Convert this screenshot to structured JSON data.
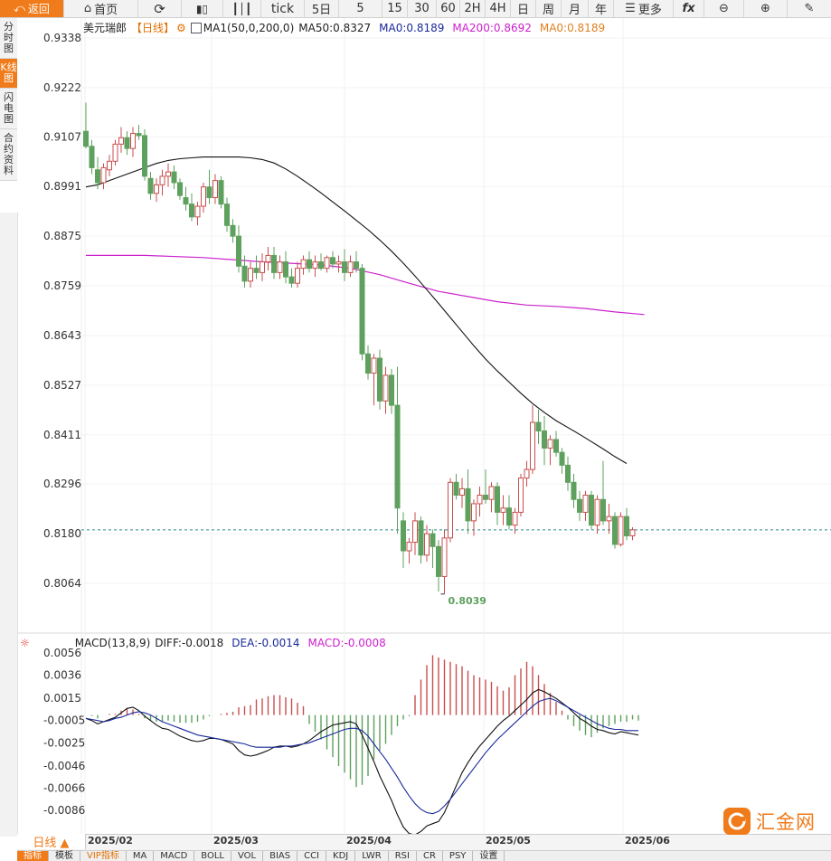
{
  "toolbar": {
    "back": "返回",
    "home": "首页",
    "tick": "tick",
    "periods": [
      "5日",
      "5",
      "15",
      "30",
      "60",
      "2H",
      "4H",
      "日",
      "周",
      "月",
      "年"
    ],
    "more": "更多",
    "fx": "fx"
  },
  "side_tabs": [
    "分时图",
    "K线图",
    "闪电图",
    "合约资料"
  ],
  "price_legend": {
    "symbol": "美元瑞郎",
    "period": "【日线】",
    "ma_settings": "MA1(50,0,200,0)",
    "ma50": "MA50:0.8327",
    "ma0": "MA0:0.8189",
    "ma200": "MA200:0.8692",
    "ma0b": "MA0:0.8189"
  },
  "macd_legend": {
    "title": "MACD(13,8,9)",
    "diff": "DIFF:-0.0018",
    "dea": "DEA:-0.0014",
    "macd": "MACD:-0.0008"
  },
  "colors": {
    "up": "#c94e4e",
    "down": "#5ea05e",
    "ma50": "#111111",
    "ma200": "#cc22cc",
    "dea": "#1a2a9a",
    "accent": "#f07b1a",
    "last_price_line": "#2a8a8a"
  },
  "date_bar": {
    "period_button": "日线 ▲",
    "dates": [
      "2025/02",
      "2025/03",
      "2025/04",
      "2025/05",
      "2025/06"
    ]
  },
  "indicator_tabs": [
    "指标",
    "模板",
    "VIP指标",
    "MA",
    "MACD",
    "BOLL",
    "VOL",
    "BIAS",
    "CCI",
    "KDJ",
    "LWR",
    "RSI",
    "CR",
    "PSY",
    "设置"
  ],
  "watermark": "汇金网",
  "chart_data": [
    {
      "type": "candlestick",
      "yticks": [
        0.9338,
        0.9222,
        0.9107,
        0.8991,
        0.8875,
        0.8759,
        0.8643,
        0.8527,
        0.8411,
        0.8296,
        0.818,
        0.8064
      ],
      "ylim": [
        0.799,
        0.94
      ],
      "annotations": [
        {
          "text": "0.8039",
          "value": 0.8039
        }
      ],
      "last_price": 0.8189,
      "candles": [
        {
          "o": 0.912,
          "h": 0.9187,
          "l": 0.908,
          "c": 0.9085
        },
        {
          "o": 0.9085,
          "h": 0.91,
          "l": 0.902,
          "c": 0.9035
        },
        {
          "o": 0.903,
          "h": 0.906,
          "l": 0.8985,
          "c": 0.9
        },
        {
          "o": 0.9,
          "h": 0.9045,
          "l": 0.8985,
          "c": 0.9035
        },
        {
          "o": 0.903,
          "h": 0.9065,
          "l": 0.9015,
          "c": 0.905
        },
        {
          "o": 0.905,
          "h": 0.91,
          "l": 0.904,
          "c": 0.909
        },
        {
          "o": 0.909,
          "h": 0.913,
          "l": 0.907,
          "c": 0.9105
        },
        {
          "o": 0.9105,
          "h": 0.912,
          "l": 0.9065,
          "c": 0.908
        },
        {
          "o": 0.908,
          "h": 0.913,
          "l": 0.906,
          "c": 0.9115
        },
        {
          "o": 0.9115,
          "h": 0.9135,
          "l": 0.91,
          "c": 0.911
        },
        {
          "o": 0.911,
          "h": 0.9125,
          "l": 0.9005,
          "c": 0.9015
        },
        {
          "o": 0.901,
          "h": 0.9025,
          "l": 0.896,
          "c": 0.8975
        },
        {
          "o": 0.8975,
          "h": 0.901,
          "l": 0.8955,
          "c": 0.8995
        },
        {
          "o": 0.8995,
          "h": 0.903,
          "l": 0.897,
          "c": 0.9015
        },
        {
          "o": 0.9015,
          "h": 0.9045,
          "l": 0.899,
          "c": 0.9025
        },
        {
          "o": 0.9025,
          "h": 0.904,
          "l": 0.8985,
          "c": 0.9
        },
        {
          "o": 0.9,
          "h": 0.901,
          "l": 0.896,
          "c": 0.897
        },
        {
          "o": 0.8965,
          "h": 0.899,
          "l": 0.8935,
          "c": 0.895
        },
        {
          "o": 0.895,
          "h": 0.8975,
          "l": 0.891,
          "c": 0.892
        },
        {
          "o": 0.892,
          "h": 0.8955,
          "l": 0.89,
          "c": 0.8945
        },
        {
          "o": 0.8945,
          "h": 0.9,
          "l": 0.893,
          "c": 0.899
        },
        {
          "o": 0.899,
          "h": 0.903,
          "l": 0.895,
          "c": 0.8965
        },
        {
          "o": 0.8965,
          "h": 0.902,
          "l": 0.895,
          "c": 0.9005
        },
        {
          "o": 0.9005,
          "h": 0.9015,
          "l": 0.894,
          "c": 0.895
        },
        {
          "o": 0.895,
          "h": 0.8965,
          "l": 0.8885,
          "c": 0.89
        },
        {
          "o": 0.89,
          "h": 0.8915,
          "l": 0.886,
          "c": 0.8875
        },
        {
          "o": 0.8875,
          "h": 0.89,
          "l": 0.879,
          "c": 0.8805
        },
        {
          "o": 0.8805,
          "h": 0.883,
          "l": 0.8755,
          "c": 0.877
        },
        {
          "o": 0.877,
          "h": 0.8815,
          "l": 0.8755,
          "c": 0.88
        },
        {
          "o": 0.88,
          "h": 0.883,
          "l": 0.8775,
          "c": 0.879
        },
        {
          "o": 0.879,
          "h": 0.8835,
          "l": 0.877,
          "c": 0.8815
        },
        {
          "o": 0.8815,
          "h": 0.885,
          "l": 0.8795,
          "c": 0.883
        },
        {
          "o": 0.883,
          "h": 0.885,
          "l": 0.8775,
          "c": 0.879
        },
        {
          "o": 0.879,
          "h": 0.883,
          "l": 0.8775,
          "c": 0.8815
        },
        {
          "o": 0.8815,
          "h": 0.884,
          "l": 0.8765,
          "c": 0.878
        },
        {
          "o": 0.878,
          "h": 0.88,
          "l": 0.8755,
          "c": 0.8765
        },
        {
          "o": 0.8765,
          "h": 0.8815,
          "l": 0.8755,
          "c": 0.88
        },
        {
          "o": 0.88,
          "h": 0.883,
          "l": 0.8785,
          "c": 0.882
        },
        {
          "o": 0.882,
          "h": 0.884,
          "l": 0.879,
          "c": 0.88
        },
        {
          "o": 0.88,
          "h": 0.883,
          "l": 0.878,
          "c": 0.8815
        },
        {
          "o": 0.8815,
          "h": 0.8835,
          "l": 0.8795,
          "c": 0.88
        },
        {
          "o": 0.88,
          "h": 0.883,
          "l": 0.879,
          "c": 0.8825
        },
        {
          "o": 0.8825,
          "h": 0.884,
          "l": 0.88,
          "c": 0.881
        },
        {
          "o": 0.881,
          "h": 0.883,
          "l": 0.879,
          "c": 0.8815
        },
        {
          "o": 0.8815,
          "h": 0.8845,
          "l": 0.877,
          "c": 0.879
        },
        {
          "o": 0.879,
          "h": 0.883,
          "l": 0.878,
          "c": 0.8815
        },
        {
          "o": 0.8815,
          "h": 0.884,
          "l": 0.879,
          "c": 0.88
        },
        {
          "o": 0.88,
          "h": 0.881,
          "l": 0.8585,
          "c": 0.86
        },
        {
          "o": 0.86,
          "h": 0.862,
          "l": 0.854,
          "c": 0.8555
        },
        {
          "o": 0.8555,
          "h": 0.86,
          "l": 0.848,
          "c": 0.859
        },
        {
          "o": 0.859,
          "h": 0.861,
          "l": 0.847,
          "c": 0.849
        },
        {
          "o": 0.849,
          "h": 0.857,
          "l": 0.846,
          "c": 0.855
        },
        {
          "o": 0.855,
          "h": 0.8565,
          "l": 0.846,
          "c": 0.848
        },
        {
          "o": 0.848,
          "h": 0.857,
          "l": 0.818,
          "c": 0.824
        },
        {
          "o": 0.821,
          "h": 0.823,
          "l": 0.81,
          "c": 0.814
        },
        {
          "o": 0.814,
          "h": 0.817,
          "l": 0.811,
          "c": 0.816
        },
        {
          "o": 0.816,
          "h": 0.823,
          "l": 0.813,
          "c": 0.821
        },
        {
          "o": 0.821,
          "h": 0.822,
          "l": 0.811,
          "c": 0.813
        },
        {
          "o": 0.813,
          "h": 0.82,
          "l": 0.8115,
          "c": 0.818
        },
        {
          "o": 0.818,
          "h": 0.819,
          "l": 0.81,
          "c": 0.815
        },
        {
          "o": 0.815,
          "h": 0.8165,
          "l": 0.8045,
          "c": 0.808
        },
        {
          "o": 0.808,
          "h": 0.819,
          "l": 0.8039,
          "c": 0.817
        },
        {
          "o": 0.817,
          "h": 0.831,
          "l": 0.816,
          "c": 0.83
        },
        {
          "o": 0.83,
          "h": 0.832,
          "l": 0.826,
          "c": 0.827
        },
        {
          "o": 0.827,
          "h": 0.831,
          "l": 0.824,
          "c": 0.8285
        },
        {
          "o": 0.8285,
          "h": 0.833,
          "l": 0.818,
          "c": 0.821
        },
        {
          "o": 0.821,
          "h": 0.826,
          "l": 0.8175,
          "c": 0.825
        },
        {
          "o": 0.825,
          "h": 0.829,
          "l": 0.822,
          "c": 0.827
        },
        {
          "o": 0.827,
          "h": 0.833,
          "l": 0.825,
          "c": 0.826
        },
        {
          "o": 0.826,
          "h": 0.83,
          "l": 0.823,
          "c": 0.829
        },
        {
          "o": 0.829,
          "h": 0.83,
          "l": 0.82,
          "c": 0.823
        },
        {
          "o": 0.823,
          "h": 0.827,
          "l": 0.82,
          "c": 0.824
        },
        {
          "o": 0.824,
          "h": 0.827,
          "l": 0.819,
          "c": 0.82
        },
        {
          "o": 0.82,
          "h": 0.824,
          "l": 0.818,
          "c": 0.823
        },
        {
          "o": 0.823,
          "h": 0.832,
          "l": 0.822,
          "c": 0.831
        },
        {
          "o": 0.831,
          "h": 0.835,
          "l": 0.829,
          "c": 0.833
        },
        {
          "o": 0.833,
          "h": 0.848,
          "l": 0.832,
          "c": 0.844
        },
        {
          "o": 0.844,
          "h": 0.847,
          "l": 0.839,
          "c": 0.842
        },
        {
          "o": 0.842,
          "h": 0.8455,
          "l": 0.834,
          "c": 0.838
        },
        {
          "o": 0.838,
          "h": 0.841,
          "l": 0.834,
          "c": 0.84
        },
        {
          "o": 0.84,
          "h": 0.842,
          "l": 0.836,
          "c": 0.837
        },
        {
          "o": 0.837,
          "h": 0.838,
          "l": 0.832,
          "c": 0.834
        },
        {
          "o": 0.834,
          "h": 0.836,
          "l": 0.828,
          "c": 0.83
        },
        {
          "o": 0.83,
          "h": 0.832,
          "l": 0.824,
          "c": 0.826
        },
        {
          "o": 0.826,
          "h": 0.828,
          "l": 0.821,
          "c": 0.823
        },
        {
          "o": 0.823,
          "h": 0.828,
          "l": 0.821,
          "c": 0.827
        },
        {
          "o": 0.827,
          "h": 0.828,
          "l": 0.819,
          "c": 0.82
        },
        {
          "o": 0.82,
          "h": 0.827,
          "l": 0.818,
          "c": 0.826
        },
        {
          "o": 0.826,
          "h": 0.835,
          "l": 0.82,
          "c": 0.821
        },
        {
          "o": 0.821,
          "h": 0.825,
          "l": 0.818,
          "c": 0.822
        },
        {
          "o": 0.822,
          "h": 0.823,
          "l": 0.8145,
          "c": 0.8155
        },
        {
          "o": 0.8155,
          "h": 0.823,
          "l": 0.815,
          "c": 0.822
        },
        {
          "o": 0.822,
          "h": 0.824,
          "l": 0.8165,
          "c": 0.8175
        },
        {
          "o": 0.8175,
          "h": 0.8195,
          "l": 0.8165,
          "c": 0.8189
        }
      ],
      "ma50": [
        0.899,
        0.8995,
        0.9005,
        0.9015,
        0.9025,
        0.9035,
        0.9045,
        0.9052,
        0.9056,
        0.9058,
        0.906,
        0.906,
        0.906,
        0.906,
        0.9058,
        0.9054,
        0.9046,
        0.9032,
        0.9015,
        0.8996,
        0.8976,
        0.8955,
        0.8934,
        0.8912,
        0.889,
        0.8866,
        0.884,
        0.8812,
        0.8782,
        0.875,
        0.8718,
        0.8685,
        0.8652,
        0.8619,
        0.8588,
        0.856,
        0.8534,
        0.8508,
        0.8484,
        0.8463,
        0.8444,
        0.8428,
        0.8412,
        0.8395,
        0.8378,
        0.836,
        0.8344
      ],
      "ma50_start_index": 0,
      "ma50_step": 2,
      "ma200_points": [
        [
          0,
          0.883
        ],
        [
          10,
          0.883
        ],
        [
          20,
          0.8825
        ],
        [
          30,
          0.8815
        ],
        [
          40,
          0.8808
        ],
        [
          45,
          0.88
        ],
        [
          50,
          0.8785
        ],
        [
          55,
          0.8765
        ],
        [
          60,
          0.8746
        ],
        [
          65,
          0.8734
        ],
        [
          70,
          0.8722
        ],
        [
          75,
          0.8714
        ],
        [
          80,
          0.8711
        ],
        [
          85,
          0.8706
        ],
        [
          90,
          0.8698
        ],
        [
          95,
          0.8692
        ]
      ]
    },
    {
      "type": "macd",
      "yticks": [
        0.0056,
        0.0036,
        0.0015,
        -0.0005,
        -0.0025,
        -0.0046,
        -0.0066,
        -0.0086
      ],
      "ylim": [
        -0.011,
        0.0062
      ],
      "diff": [
        -0.0003,
        -0.0005,
        -0.0008,
        -0.0006,
        -0.0004,
        -0.0002,
        0.0002,
        0.0006,
        0.0007,
        0.0004,
        -0.0001,
        -0.0005,
        -0.0009,
        -0.0012,
        -0.0013,
        -0.0016,
        -0.0019,
        -0.0021,
        -0.0023,
        -0.0024,
        -0.0023,
        -0.0021,
        -0.0021,
        -0.0022,
        -0.0024,
        -0.0026,
        -0.0032,
        -0.0036,
        -0.0037,
        -0.0036,
        -0.0034,
        -0.0032,
        -0.0029,
        -0.0028,
        -0.0028,
        -0.0029,
        -0.0028,
        -0.0026,
        -0.0023,
        -0.0019,
        -0.0015,
        -0.0012,
        -0.0009,
        -0.0008,
        -0.0007,
        -0.0006,
        -0.0008,
        -0.0018,
        -0.003,
        -0.0042,
        -0.0055,
        -0.0066,
        -0.0077,
        -0.009,
        -0.0101,
        -0.0107,
        -0.0108,
        -0.0105,
        -0.01,
        -0.0098,
        -0.0096,
        -0.0088,
        -0.0076,
        -0.0064,
        -0.0052,
        -0.0043,
        -0.0035,
        -0.0028,
        -0.0022,
        -0.0016,
        -0.001,
        -0.0005,
        -0.0001,
        0.0004,
        0.0009,
        0.0014,
        0.002,
        0.0023,
        0.0021,
        0.0018,
        0.0015,
        0.0011,
        0.0007,
        0.0002,
        -0.0003,
        -0.0006,
        -0.001,
        -0.0013,
        -0.0014,
        -0.0016,
        -0.0017,
        -0.0015,
        -0.0016,
        -0.0017,
        -0.0018
      ],
      "dea": [
        -0.0003,
        -0.0004,
        -0.0005,
        -0.0006,
        -0.0005,
        -0.0003,
        -0.0002,
        0.0,
        0.0002,
        0.0003,
        0.0002,
        0.0,
        -0.0003,
        -0.0006,
        -0.0008,
        -0.001,
        -0.0012,
        -0.0014,
        -0.0016,
        -0.0018,
        -0.0019,
        -0.002,
        -0.0021,
        -0.0022,
        -0.0023,
        -0.0024,
        -0.0025,
        -0.0026,
        -0.0028,
        -0.0029,
        -0.0029,
        -0.0029,
        -0.0029,
        -0.0029,
        -0.0028,
        -0.0028,
        -0.0027,
        -0.0026,
        -0.0025,
        -0.0023,
        -0.0021,
        -0.0019,
        -0.0017,
        -0.0015,
        -0.0013,
        -0.0012,
        -0.0012,
        -0.0014,
        -0.0019,
        -0.0026,
        -0.0033,
        -0.004,
        -0.0048,
        -0.0056,
        -0.0065,
        -0.0073,
        -0.008,
        -0.0085,
        -0.0088,
        -0.0089,
        -0.0087,
        -0.0082,
        -0.0076,
        -0.0069,
        -0.0062,
        -0.0055,
        -0.0048,
        -0.0041,
        -0.0034,
        -0.0028,
        -0.0022,
        -0.0017,
        -0.0012,
        -0.0007,
        -0.0002,
        0.0003,
        0.0008,
        0.0012,
        0.0014,
        0.0015,
        0.0013,
        0.001,
        0.0007,
        0.0004,
        0.0001,
        -0.0002,
        -0.0005,
        -0.0008,
        -0.001,
        -0.0012,
        -0.0013,
        -0.0013,
        -0.0014,
        -0.0014,
        -0.0014
      ],
      "hist": [
        0.0,
        -0.0001,
        -0.0003,
        0.0,
        0.0001,
        0.0001,
        0.0004,
        0.0006,
        0.0005,
        0.0001,
        -0.0003,
        -0.0005,
        -0.0006,
        -0.0006,
        -0.0005,
        -0.0006,
        -0.0007,
        -0.0007,
        -0.0007,
        -0.0006,
        -0.0004,
        -0.0001,
        0.0,
        0.0001,
        0.0002,
        0.0003,
        0.0007,
        0.0008,
        0.0009,
        0.0014,
        0.0015,
        0.0017,
        0.0018,
        0.0018,
        0.0016,
        0.0015,
        0.0011,
        0.0008,
        -0.0008,
        -0.0015,
        -0.0022,
        -0.0031,
        -0.0038,
        -0.0046,
        -0.0052,
        -0.0058,
        -0.0065,
        -0.0063,
        -0.0055,
        -0.004,
        -0.0032,
        -0.0026,
        -0.0018,
        -0.001,
        -0.0004,
        -0.0001,
        0.0018,
        0.0032,
        0.0045,
        0.0054,
        0.0052,
        0.005,
        0.0048,
        0.0046,
        0.0044,
        0.004,
        0.0036,
        0.0034,
        0.0032,
        0.003,
        0.0026,
        0.0022,
        0.0025,
        0.0036,
        0.0042,
        0.0048,
        0.0044,
        0.0036,
        0.0028,
        0.002,
        0.0012,
        0.0004,
        -0.0004,
        -0.001,
        -0.0014,
        -0.0018,
        -0.002,
        -0.0016,
        -0.0012,
        -0.001,
        -0.0008,
        -0.0006,
        -0.0006,
        -0.0004,
        -0.0005
      ]
    }
  ]
}
